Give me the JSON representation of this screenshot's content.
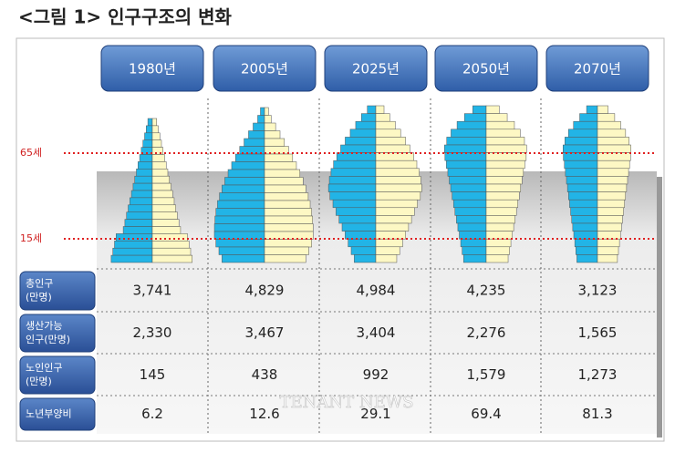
{
  "title": "<그림 1> 인구구조의 변화",
  "years": [
    "1980년",
    "2005년",
    "2025년",
    "2050년",
    "2070년"
  ],
  "age_markers": [
    "65세",
    "15세"
  ],
  "table": {
    "row_labels": [
      [
        "총인구",
        "(만명)"
      ],
      [
        "생산가능",
        "인구(만명)"
      ],
      [
        "노인인구",
        "(만명)"
      ],
      [
        "노년부양비"
      ]
    ],
    "rows": [
      [
        "3,741",
        "4,829",
        "4,984",
        "4,235",
        "3,123"
      ],
      [
        "2,330",
        "3,467",
        "3,404",
        "2,276",
        "1,565"
      ],
      [
        "145",
        "438",
        "992",
        "1,579",
        "1,273"
      ],
      [
        "6.2",
        "12.6",
        "29.1",
        "69.4",
        "81.3"
      ]
    ]
  },
  "watermark": "TENANT NEWS"
}
